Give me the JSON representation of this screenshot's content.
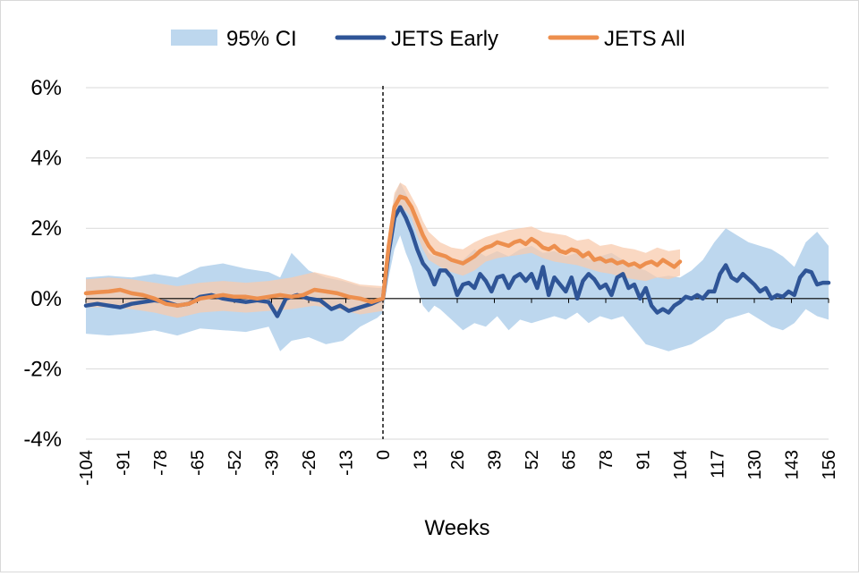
{
  "chart_data": {
    "type": "line",
    "xlabel": "Weeks",
    "ylabel": "",
    "title": "",
    "xlim": [
      -104,
      156
    ],
    "ylim": [
      -4,
      6
    ],
    "y_ticks": [
      -4,
      -2,
      0,
      2,
      4,
      6
    ],
    "y_tick_labels": [
      "-4%",
      "-2%",
      "0%",
      "2%",
      "4%",
      "6%"
    ],
    "x_ticks": [
      -104,
      -91,
      -78,
      -65,
      -52,
      -39,
      -26,
      -13,
      0,
      13,
      26,
      39,
      52,
      65,
      78,
      91,
      104,
      117,
      130,
      143,
      156
    ],
    "x_tick_labels": [
      "-104",
      "-91",
      "-78",
      "-65",
      "-52",
      "-39",
      "-26",
      "-13",
      "0",
      "13",
      "26",
      "39",
      "52",
      "65",
      "78",
      "91",
      "104",
      "117",
      "130",
      "143",
      "156"
    ],
    "grid": "horizontal",
    "legend_position": "top",
    "vertical_reference_x": 0,
    "colors": {
      "ci_wide": "#bdd7ee",
      "ci_all": "#f8cbad",
      "early": "#2f5597",
      "all": "#ed8f4e",
      "grid": "#d9d9d9",
      "zero_line": "#000000"
    },
    "legend": [
      {
        "label": "95% CI",
        "kind": "band"
      },
      {
        "label": "JETS Early",
        "kind": "line",
        "series": "early"
      },
      {
        "label": "JETS All",
        "kind": "line",
        "series": "all"
      }
    ],
    "series": [
      {
        "name": "JETS Early",
        "key": "early",
        "x": [
          -104,
          -100,
          -96,
          -92,
          -88,
          -84,
          -80,
          -76,
          -72,
          -68,
          -64,
          -60,
          -56,
          -52,
          -48,
          -44,
          -40,
          -37,
          -34,
          -30,
          -26,
          -22,
          -18,
          -15,
          -12,
          -8,
          -4,
          0,
          2,
          4,
          6,
          8,
          10,
          12,
          14,
          16,
          18,
          20,
          22,
          24,
          26,
          28,
          30,
          32,
          34,
          36,
          38,
          40,
          42,
          44,
          46,
          48,
          50,
          52,
          54,
          56,
          58,
          60,
          62,
          64,
          66,
          68,
          70,
          72,
          74,
          76,
          78,
          80,
          82,
          84,
          86,
          88,
          90,
          92,
          94,
          96,
          98,
          100,
          102,
          104,
          106,
          108,
          110,
          112,
          114,
          116,
          118,
          120,
          122,
          124,
          126,
          128,
          130,
          132,
          134,
          136,
          138,
          140,
          142,
          144,
          146,
          148,
          150,
          152,
          154,
          156
        ],
        "values": [
          -0.2,
          -0.15,
          -0.2,
          -0.25,
          -0.15,
          -0.1,
          -0.05,
          -0.1,
          -0.2,
          -0.15,
          0.05,
          0.1,
          0.0,
          -0.05,
          -0.1,
          -0.05,
          -0.1,
          -0.5,
          0.0,
          0.1,
          0.0,
          -0.05,
          -0.3,
          -0.2,
          -0.35,
          -0.25,
          -0.15,
          0.0,
          1.3,
          2.3,
          2.6,
          2.3,
          1.9,
          1.4,
          1.0,
          0.8,
          0.4,
          0.8,
          0.8,
          0.6,
          0.1,
          0.4,
          0.45,
          0.3,
          0.7,
          0.5,
          0.2,
          0.6,
          0.65,
          0.3,
          0.6,
          0.7,
          0.5,
          0.7,
          0.3,
          0.9,
          0.1,
          0.6,
          0.4,
          0.2,
          0.6,
          0.0,
          0.5,
          0.7,
          0.55,
          0.3,
          0.4,
          0.1,
          0.6,
          0.7,
          0.3,
          0.4,
          0.0,
          0.3,
          -0.2,
          -0.4,
          -0.3,
          -0.4,
          -0.2,
          -0.1,
          0.05,
          0.0,
          0.1,
          0.0,
          0.2,
          0.2,
          0.7,
          0.95,
          0.6,
          0.5,
          0.7,
          0.55,
          0.4,
          0.2,
          0.3,
          0.0,
          0.1,
          0.05,
          0.2,
          0.1,
          0.6,
          0.8,
          0.75,
          0.4,
          0.45,
          0.45
        ]
      },
      {
        "name": "JETS All",
        "key": "all",
        "x": [
          -104,
          -100,
          -96,
          -92,
          -88,
          -84,
          -80,
          -76,
          -72,
          -68,
          -64,
          -60,
          -56,
          -52,
          -48,
          -44,
          -40,
          -36,
          -32,
          -28,
          -24,
          -20,
          -16,
          -12,
          -8,
          -4,
          0,
          2,
          4,
          6,
          8,
          10,
          12,
          14,
          16,
          18,
          20,
          22,
          24,
          26,
          28,
          30,
          32,
          34,
          36,
          38,
          40,
          42,
          44,
          46,
          48,
          50,
          52,
          54,
          56,
          58,
          60,
          62,
          64,
          66,
          68,
          70,
          72,
          74,
          76,
          78,
          80,
          82,
          84,
          86,
          88,
          90,
          92,
          94,
          96,
          98,
          100,
          102,
          104
        ],
        "values": [
          0.15,
          0.18,
          0.2,
          0.25,
          0.15,
          0.1,
          0.0,
          -0.15,
          -0.2,
          -0.15,
          0.0,
          0.05,
          0.1,
          0.05,
          0.05,
          0.0,
          0.05,
          0.1,
          0.05,
          0.1,
          0.25,
          0.2,
          0.15,
          0.05,
          0.0,
          -0.1,
          0.0,
          1.5,
          2.6,
          2.9,
          2.85,
          2.6,
          2.2,
          1.8,
          1.5,
          1.3,
          1.25,
          1.2,
          1.1,
          1.05,
          1.0,
          1.1,
          1.2,
          1.35,
          1.45,
          1.5,
          1.6,
          1.55,
          1.5,
          1.6,
          1.65,
          1.55,
          1.7,
          1.6,
          1.45,
          1.4,
          1.5,
          1.35,
          1.3,
          1.4,
          1.35,
          1.2,
          1.3,
          1.1,
          1.15,
          1.05,
          1.1,
          1.0,
          1.05,
          0.95,
          1.0,
          0.9,
          1.0,
          1.05,
          0.95,
          1.1,
          1.0,
          0.9,
          1.05
        ]
      }
    ],
    "ci_bands": [
      {
        "label": "95% CI",
        "key": "early",
        "x": [
          -104,
          -96,
          -88,
          -80,
          -72,
          -64,
          -56,
          -48,
          -40,
          -36,
          -32,
          -26,
          -20,
          -14,
          -8,
          -2,
          0,
          2,
          4,
          6,
          8,
          10,
          12,
          14,
          16,
          18,
          20,
          24,
          28,
          32,
          36,
          40,
          44,
          48,
          52,
          56,
          60,
          64,
          68,
          72,
          76,
          80,
          84,
          88,
          92,
          96,
          100,
          104,
          108,
          112,
          116,
          120,
          124,
          128,
          132,
          136,
          140,
          144,
          148,
          152,
          156
        ],
        "upper": [
          0.6,
          0.65,
          0.6,
          0.7,
          0.6,
          0.9,
          1.0,
          0.85,
          0.75,
          0.6,
          1.3,
          0.8,
          0.6,
          0.5,
          0.35,
          0.3,
          0.3,
          1.6,
          2.9,
          3.3,
          3.0,
          2.6,
          2.2,
          1.7,
          1.3,
          1.2,
          1.3,
          1.1,
          1.1,
          1.4,
          1.2,
          1.35,
          1.2,
          1.4,
          1.5,
          1.3,
          1.35,
          1.2,
          1.3,
          1.1,
          1.2,
          1.3,
          1.1,
          0.9,
          0.8,
          0.6,
          0.65,
          0.6,
          0.8,
          1.1,
          1.6,
          2.0,
          1.8,
          1.6,
          1.5,
          1.4,
          1.2,
          0.9,
          1.6,
          1.9,
          1.5
        ],
        "lower": [
          -1.0,
          -1.05,
          -1.0,
          -0.9,
          -1.05,
          -0.85,
          -0.9,
          -0.95,
          -0.8,
          -1.5,
          -1.2,
          -1.1,
          -1.3,
          -1.2,
          -0.8,
          -0.55,
          -0.4,
          0.6,
          1.4,
          1.8,
          1.3,
          0.9,
          0.3,
          -0.2,
          -0.4,
          -0.2,
          -0.3,
          -0.6,
          -0.9,
          -0.7,
          -0.8,
          -0.5,
          -0.9,
          -0.6,
          -0.7,
          -0.6,
          -0.5,
          -0.6,
          -0.4,
          -0.7,
          -0.5,
          -0.6,
          -0.5,
          -0.9,
          -1.3,
          -1.4,
          -1.5,
          -1.4,
          -1.3,
          -1.1,
          -0.9,
          -0.6,
          -0.5,
          -0.4,
          -0.6,
          -0.8,
          -0.9,
          -0.7,
          -0.3,
          -0.5,
          -0.6
        ]
      },
      {
        "label": "95% CI",
        "key": "all",
        "x": [
          -104,
          -96,
          -88,
          -80,
          -72,
          -64,
          -56,
          -48,
          -40,
          -32,
          -24,
          -16,
          -8,
          0,
          2,
          4,
          6,
          8,
          10,
          12,
          14,
          16,
          20,
          24,
          28,
          32,
          36,
          40,
          44,
          48,
          52,
          56,
          60,
          64,
          68,
          72,
          76,
          80,
          84,
          88,
          92,
          96,
          100,
          104
        ],
        "upper": [
          0.55,
          0.6,
          0.55,
          0.45,
          0.35,
          0.45,
          0.5,
          0.45,
          0.5,
          0.6,
          0.75,
          0.6,
          0.4,
          0.35,
          1.9,
          3.0,
          3.3,
          3.2,
          2.9,
          2.6,
          2.2,
          1.9,
          1.6,
          1.45,
          1.4,
          1.6,
          1.75,
          1.85,
          1.95,
          2.0,
          2.05,
          1.9,
          1.85,
          1.8,
          1.65,
          1.7,
          1.5,
          1.55,
          1.45,
          1.4,
          1.3,
          1.45,
          1.35,
          1.4
        ],
        "lower": [
          -0.25,
          -0.25,
          -0.3,
          -0.4,
          -0.55,
          -0.4,
          -0.35,
          -0.4,
          -0.35,
          -0.3,
          -0.2,
          -0.3,
          -0.45,
          -0.35,
          1.1,
          2.2,
          2.5,
          2.5,
          2.3,
          1.8,
          1.4,
          1.1,
          0.9,
          0.75,
          0.65,
          0.8,
          1.05,
          1.15,
          1.2,
          1.25,
          1.3,
          1.15,
          1.05,
          1.0,
          0.95,
          0.85,
          0.75,
          0.7,
          0.6,
          0.55,
          0.5,
          0.6,
          0.55,
          0.65
        ]
      }
    ]
  }
}
